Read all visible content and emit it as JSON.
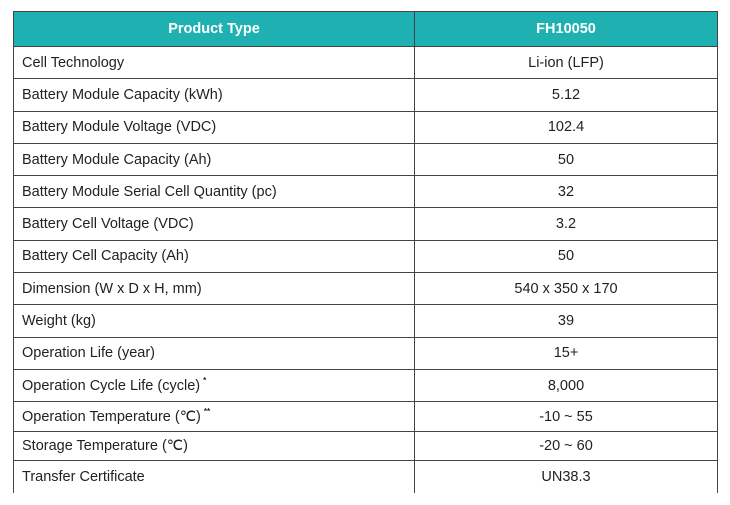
{
  "table": {
    "header": {
      "col1": "Product Type",
      "col2": "FH10050"
    },
    "rows": [
      {
        "label": "Cell Technology",
        "note": "",
        "value": "Li-ion (LFP)"
      },
      {
        "label": "Battery Module Capacity (kWh)",
        "note": "",
        "value": "5.12"
      },
      {
        "label": "Battery Module Voltage (VDC)",
        "note": "",
        "value": "102.4"
      },
      {
        "label": "Battery Module Capacity (Ah)",
        "note": "",
        "value": "50"
      },
      {
        "label": "Battery Module Serial Cell Quantity (pc)",
        "note": "",
        "value": "32"
      },
      {
        "label": "Battery Cell Voltage (VDC)",
        "note": "",
        "value": "3.2"
      },
      {
        "label": "Battery Cell Capacity (Ah)",
        "note": "",
        "value": "50"
      },
      {
        "label": "Dimension (W x D x H, mm)",
        "note": "",
        "value": "540 x 350 x 170"
      },
      {
        "label": "Weight (kg)",
        "note": "",
        "value": "39"
      },
      {
        "label": "Operation Life (year)",
        "note": "",
        "value": "15+"
      },
      {
        "label": "Operation Cycle Life (cycle)",
        "note": "*",
        "value": "8,000"
      },
      {
        "label": "Operation Temperature (℃)",
        "note": "**",
        "value": "-10 ~ 55"
      },
      {
        "label": "Storage Temperature (℃)",
        "note": "",
        "value": "-20 ~ 60"
      },
      {
        "label": "Transfer Certificate",
        "note": "",
        "value": "UN38.3"
      }
    ]
  }
}
